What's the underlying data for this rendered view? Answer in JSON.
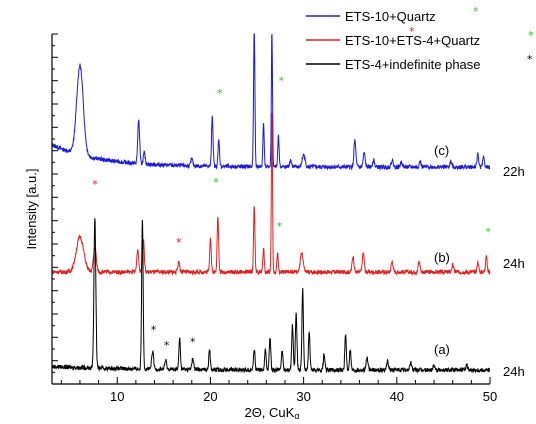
{
  "chart_data": {
    "type": "line",
    "title": "",
    "xlabel_main": "2Θ, CuK",
    "xlabel_sub": "α",
    "ylabel": "Intensity [a.u.]",
    "xlim": [
      3,
      50
    ],
    "x_ticks": [
      10,
      20,
      30,
      40,
      50
    ],
    "x_tick_labels": [
      "10",
      "20",
      "30",
      "40",
      "50"
    ],
    "ylim": [
      0,
      10
    ],
    "y_ticks_shown": false,
    "grid": false,
    "legend_position": "top-right",
    "star_colors": {
      "green": "#22cc22",
      "red": "#e02020",
      "black": "#000000"
    },
    "series": [
      {
        "name": "ETS-10+Quartz",
        "trace_label": "(c)",
        "time_label": "22h",
        "color": "#1a1adb",
        "legend_star_color": "#22cc22",
        "baseline": 6.2,
        "peaks": [
          [
            6.0,
            2.55,
            0.35
          ],
          [
            12.3,
            1.25,
            0.1
          ],
          [
            12.9,
            0.3,
            0.1
          ],
          [
            18.0,
            0.2,
            0.1
          ],
          [
            20.2,
            1.45,
            0.08
          ],
          [
            20.9,
            0.75,
            0.08
          ],
          [
            24.7,
            4.0,
            0.07
          ],
          [
            25.7,
            1.25,
            0.07
          ],
          [
            26.6,
            4.0,
            0.06
          ],
          [
            27.3,
            0.9,
            0.07
          ],
          [
            28.6,
            0.2,
            0.1
          ],
          [
            30.0,
            0.35,
            0.15
          ],
          [
            35.5,
            0.75,
            0.1
          ],
          [
            36.5,
            0.4,
            0.1
          ],
          [
            37.5,
            0.2,
            0.1
          ],
          [
            39.5,
            0.2,
            0.1
          ],
          [
            40.5,
            0.15,
            0.1
          ],
          [
            42.5,
            0.15,
            0.1
          ],
          [
            45.8,
            0.15,
            0.1
          ],
          [
            48.7,
            0.4,
            0.08
          ],
          [
            49.3,
            0.3,
            0.08
          ]
        ],
        "stars": [
          [
            21.0,
            8.2,
            "#22cc22"
          ],
          [
            27.6,
            8.55,
            "#22cc22"
          ]
        ]
      },
      {
        "name": "ETS-10+ETS-4+Quartz",
        "trace_label": "(b)",
        "time_label": "24h",
        "color": "#e02020",
        "legend_star_color": "#e02020",
        "baseline": 3.2,
        "peaks": [
          [
            6.0,
            1.0,
            0.4
          ],
          [
            7.6,
            0.7,
            0.15
          ],
          [
            12.2,
            0.65,
            0.1
          ],
          [
            12.8,
            0.95,
            0.1
          ],
          [
            16.6,
            0.3,
            0.1
          ],
          [
            20.0,
            1.0,
            0.08
          ],
          [
            20.8,
            1.6,
            0.08
          ],
          [
            24.7,
            1.95,
            0.07
          ],
          [
            25.7,
            0.7,
            0.07
          ],
          [
            26.6,
            4.6,
            0.06
          ],
          [
            27.2,
            0.55,
            0.07
          ],
          [
            29.8,
            0.55,
            0.15
          ],
          [
            35.3,
            0.45,
            0.1
          ],
          [
            36.4,
            0.55,
            0.1
          ],
          [
            39.5,
            0.3,
            0.1
          ],
          [
            42.4,
            0.3,
            0.1
          ],
          [
            46.0,
            0.2,
            0.1
          ],
          [
            48.7,
            0.3,
            0.08
          ],
          [
            49.6,
            0.5,
            0.08
          ]
        ],
        "stars": [
          [
            7.6,
            5.6,
            "#e02020"
          ],
          [
            16.6,
            3.95,
            "#e02020"
          ],
          [
            20.6,
            5.65,
            "#22cc22"
          ],
          [
            27.4,
            4.4,
            "#22cc22"
          ],
          [
            49.8,
            4.25,
            "#22cc22"
          ]
        ]
      },
      {
        "name": "ETS-4+indefinite phase",
        "trace_label": "(a)",
        "time_label": "24h",
        "color": "#000000",
        "legend_star_color": "#000000",
        "baseline": 0.4,
        "peaks": [
          [
            7.6,
            4.3,
            0.1
          ],
          [
            12.7,
            4.3,
            0.08
          ],
          [
            13.8,
            0.5,
            0.1
          ],
          [
            15.2,
            0.25,
            0.1
          ],
          [
            16.7,
            0.9,
            0.08
          ],
          [
            18.1,
            0.3,
            0.1
          ],
          [
            19.9,
            0.6,
            0.08
          ],
          [
            24.7,
            0.6,
            0.08
          ],
          [
            25.9,
            0.6,
            0.08
          ],
          [
            26.4,
            0.9,
            0.08
          ],
          [
            27.7,
            0.55,
            0.08
          ],
          [
            28.8,
            1.3,
            0.08
          ],
          [
            29.2,
            1.7,
            0.08
          ],
          [
            29.9,
            2.3,
            0.08
          ],
          [
            30.6,
            1.1,
            0.08
          ],
          [
            32.2,
            0.45,
            0.08
          ],
          [
            34.5,
            1.0,
            0.08
          ],
          [
            35.0,
            0.6,
            0.08
          ],
          [
            36.8,
            0.35,
            0.1
          ],
          [
            39.0,
            0.25,
            0.1
          ],
          [
            41.5,
            0.2,
            0.1
          ],
          [
            44.0,
            0.15,
            0.1
          ],
          [
            47.5,
            0.15,
            0.1
          ]
        ],
        "stars": [
          [
            13.9,
            1.45,
            "#000000"
          ],
          [
            15.3,
            1.0,
            "#000000"
          ],
          [
            18.1,
            1.1,
            "#000000"
          ]
        ]
      }
    ]
  }
}
